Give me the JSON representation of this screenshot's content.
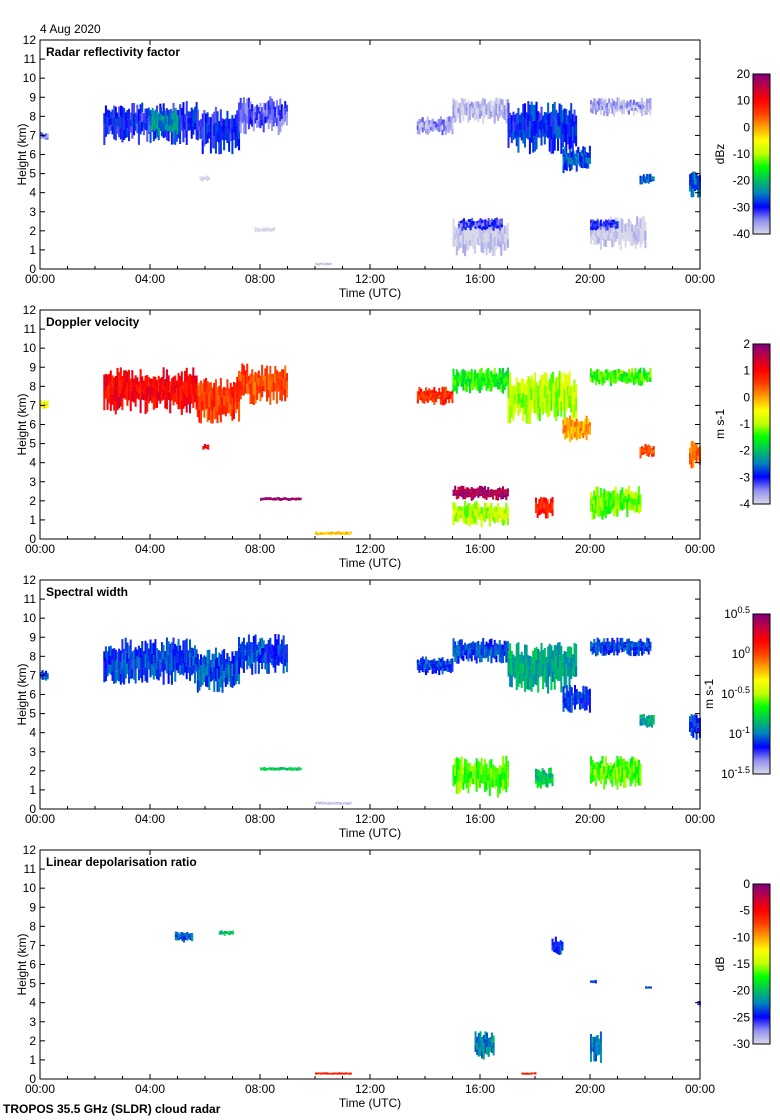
{
  "date": "4 Aug 2020",
  "footer": "TROPOS 35.5 GHz (SLDR) cloud radar",
  "chart_data": [
    {
      "type": "heatmap",
      "title": "Radar reflectivity factor",
      "xlabel": "Time (UTC)",
      "ylabel": "Height (km)",
      "xlim": [
        0,
        24
      ],
      "ylim": [
        0,
        12
      ],
      "xticks": [
        "00:00",
        "04:00",
        "08:00",
        "12:00",
        "16:00",
        "20:00",
        "00:00"
      ],
      "yticks": [
        "0",
        "1",
        "2",
        "3",
        "4",
        "5",
        "6",
        "7",
        "8",
        "9",
        "10",
        "11",
        "12"
      ],
      "colorbar": {
        "label": "dBz",
        "range": [
          -40,
          20
        ],
        "ticks": [
          "20",
          "10",
          "0",
          "-10",
          "-20",
          "-30",
          "-40"
        ]
      },
      "regions": [
        [
          2.3,
          5.7,
          6.5,
          8.8,
          -30
        ],
        [
          4,
          5,
          6.8,
          8.5,
          -24
        ],
        [
          5.7,
          7.2,
          6,
          8.5,
          -30
        ],
        [
          7.2,
          9,
          7,
          9.1,
          -33
        ],
        [
          0,
          0.3,
          6.7,
          7.2,
          -35
        ],
        [
          13.7,
          15,
          7,
          8,
          -36
        ],
        [
          15,
          17,
          7.6,
          9,
          -38
        ],
        [
          17,
          19.5,
          6,
          8.8,
          -29
        ],
        [
          19,
          20,
          5,
          6.5,
          -27
        ],
        [
          20,
          22.2,
          8,
          9,
          -37
        ],
        [
          21.8,
          22.3,
          4.4,
          5,
          -26
        ],
        [
          23.6,
          24,
          3.6,
          5.2,
          -26
        ],
        [
          15,
          17,
          0.6,
          2.7,
          -40
        ],
        [
          15.2,
          16.8,
          2,
          2.7,
          -32
        ],
        [
          20,
          22,
          1,
          2.8,
          -40
        ],
        [
          20,
          21,
          2,
          2.6,
          -31
        ],
        [
          10,
          10.6,
          0.2,
          0.35,
          -40
        ],
        [
          7.8,
          8.5,
          1.9,
          2.2,
          -40
        ],
        [
          5.8,
          6.1,
          4.6,
          4.9,
          -40
        ]
      ]
    },
    {
      "type": "heatmap",
      "title": "Doppler velocity",
      "xlabel": "Time (UTC)",
      "ylabel": "Height (km)",
      "xlim": [
        0,
        24
      ],
      "ylim": [
        0,
        12
      ],
      "xticks": [
        "00:00",
        "04:00",
        "08:00",
        "12:00",
        "16:00",
        "20:00",
        "00:00"
      ],
      "yticks": [
        "0",
        "1",
        "2",
        "3",
        "4",
        "5",
        "6",
        "7",
        "8",
        "9",
        "10",
        "11",
        "12"
      ],
      "colorbar": {
        "label": "m s-1",
        "range": [
          -4,
          2
        ],
        "ticks": [
          "2",
          "1",
          "0",
          "-1",
          "-2",
          "-3",
          "-4"
        ]
      },
      "regions": [
        [
          2.3,
          5.7,
          6.5,
          9,
          1
        ],
        [
          5.7,
          7.2,
          6,
          8.5,
          0.6
        ],
        [
          7.2,
          9,
          7,
          9.2,
          0.5
        ],
        [
          0,
          0.3,
          6.7,
          7.3,
          -0.5
        ],
        [
          13.7,
          15,
          7,
          8,
          0.7
        ],
        [
          15,
          17,
          7.6,
          9,
          -1.5
        ],
        [
          17,
          19.5,
          6,
          8.8,
          -1
        ],
        [
          19,
          20,
          5,
          6.5,
          0
        ],
        [
          20,
          22.2,
          8,
          9,
          -1.4
        ],
        [
          21.8,
          22.3,
          4.2,
          5,
          0.5
        ],
        [
          23.6,
          24,
          3.6,
          5.2,
          0.3
        ],
        [
          15,
          17,
          2,
          2.8,
          1.7
        ],
        [
          15,
          17,
          0.6,
          2,
          -1
        ],
        [
          18,
          18.6,
          1,
          2.2,
          0.8
        ],
        [
          20,
          21.8,
          1,
          2.8,
          -1.2
        ],
        [
          8,
          9.5,
          2,
          2.2,
          1.8
        ],
        [
          10,
          11.3,
          0.2,
          0.4,
          -0.2
        ],
        [
          5.9,
          6.1,
          4.6,
          5,
          1
        ]
      ]
    },
    {
      "type": "heatmap",
      "title": "Spectral width",
      "xlabel": "Time (UTC)",
      "ylabel": "Height (km)",
      "xlim": [
        0,
        24
      ],
      "ylim": [
        0,
        12
      ],
      "xticks": [
        "00:00",
        "04:00",
        "08:00",
        "12:00",
        "16:00",
        "20:00",
        "00:00"
      ],
      "yticks": [
        "0",
        "1",
        "2",
        "3",
        "4",
        "5",
        "6",
        "7",
        "8",
        "9",
        "10",
        "11",
        "12"
      ],
      "colorbar": {
        "label": "m s-1",
        "range": [
          -1.5,
          0.5
        ],
        "ticks": [
          "10^0.5",
          "10^0",
          "10^-0.5",
          "10^-1",
          "10^-1.5"
        ]
      },
      "regions": [
        [
          2.3,
          5.7,
          6.5,
          9,
          -1.1
        ],
        [
          5.7,
          7.2,
          6,
          8.5,
          -1.05
        ],
        [
          7.2,
          9,
          7,
          9.2,
          -1.1
        ],
        [
          0,
          0.3,
          6.7,
          7.3,
          -1.1
        ],
        [
          13.7,
          15,
          7,
          8,
          -1.1
        ],
        [
          15,
          17,
          7.6,
          9,
          -1.1
        ],
        [
          17,
          19.5,
          6,
          8.8,
          -0.9
        ],
        [
          19,
          20,
          5,
          6.5,
          -1.1
        ],
        [
          20,
          22.2,
          8,
          9,
          -1.1
        ],
        [
          21.8,
          22.3,
          4.2,
          5,
          -0.9
        ],
        [
          23.6,
          24,
          3.6,
          5.2,
          -1.1
        ],
        [
          15,
          17,
          0.6,
          2.8,
          -0.6
        ],
        [
          18,
          18.6,
          1,
          2.2,
          -0.8
        ],
        [
          20,
          21.8,
          1,
          2.8,
          -0.6
        ],
        [
          8,
          9.5,
          2,
          2.2,
          -0.8
        ],
        [
          10,
          11.3,
          0.2,
          0.4,
          -1.5
        ]
      ]
    },
    {
      "type": "heatmap",
      "title": "Linear depolarisation ratio",
      "xlabel": "Time (UTC)",
      "ylabel": "Height (km)",
      "xlim": [
        0,
        24
      ],
      "ylim": [
        0,
        12
      ],
      "xticks": [
        "00:00",
        "04:00",
        "08:00",
        "12:00",
        "16:00",
        "20:00",
        "00:00"
      ],
      "yticks": [
        "0",
        "1",
        "2",
        "3",
        "4",
        "5",
        "6",
        "7",
        "8",
        "9",
        "10",
        "11",
        "12"
      ],
      "colorbar": {
        "label": "dB",
        "range": [
          -30,
          0
        ],
        "ticks": [
          "0",
          "-5",
          "-10",
          "-15",
          "-20",
          "-25",
          "-30"
        ]
      },
      "regions": [
        [
          4.9,
          5.5,
          7.1,
          7.8,
          -23
        ],
        [
          6.5,
          7,
          7.5,
          7.8,
          -20
        ],
        [
          18.6,
          19,
          6.4,
          7.5,
          -24
        ],
        [
          20,
          20.2,
          5,
          5.2,
          -24
        ],
        [
          15.8,
          16.5,
          1,
          2.6,
          -22
        ],
        [
          20,
          20.4,
          0.8,
          2.6,
          -22
        ],
        [
          23.9,
          24,
          3.8,
          4.1,
          -26
        ],
        [
          10,
          11.3,
          0.25,
          0.35,
          -6
        ],
        [
          17.5,
          18,
          0.25,
          0.35,
          -6
        ],
        [
          22,
          22.2,
          4.7,
          4.9,
          -24
        ]
      ]
    }
  ],
  "colormap": [
    "#d8d8e8",
    "#9090f0",
    "#0000ff",
    "#0080c0",
    "#00c060",
    "#00ff00",
    "#c0ff00",
    "#ffff00",
    "#ffa000",
    "#ff4000",
    "#ff0000",
    "#c00040",
    "#800080"
  ]
}
